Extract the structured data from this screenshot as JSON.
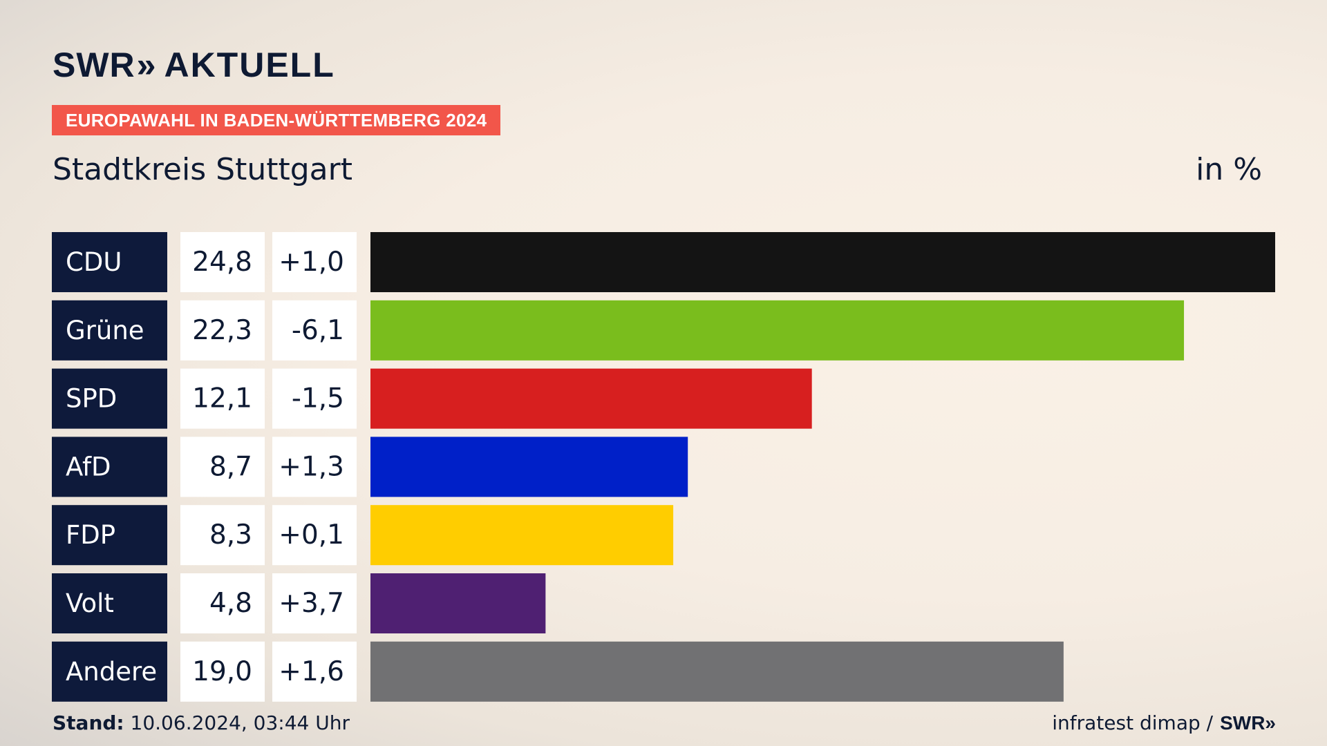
{
  "brand": {
    "name_left": "SWR",
    "name_right": "AKTUELL"
  },
  "tag": "EUROPAWAHL IN BADEN-WÜRTTEMBERG 2024",
  "title": "Stadtkreis Stuttgart",
  "unit": "in %",
  "footer": {
    "stand_label": "Stand:",
    "stand_value": "10.06.2024, 03:44 Uhr",
    "source": "infratest dimap /",
    "source_logo": "SWR"
  },
  "chart_data": {
    "type": "bar",
    "orientation": "horizontal",
    "categories": [
      "CDU",
      "Grüne",
      "SPD",
      "AfD",
      "FDP",
      "Volt",
      "Andere"
    ],
    "values": [
      24.8,
      22.3,
      12.1,
      8.7,
      8.3,
      4.8,
      19.0
    ],
    "value_labels": [
      "24,8",
      "22,3",
      "12,1",
      "8,7",
      "8,3",
      "4,8",
      "19,0"
    ],
    "changes": [
      "+1,0",
      "-6,1",
      "-1,5",
      "+1,3",
      "+0,1",
      "+3,7",
      "+1,6"
    ],
    "colors": [
      "#141414",
      "#7abd1d",
      "#d71f1f",
      "#0020c8",
      "#ffcd00",
      "#4f2072",
      "#717173"
    ],
    "xlim": [
      0,
      24.8
    ]
  }
}
